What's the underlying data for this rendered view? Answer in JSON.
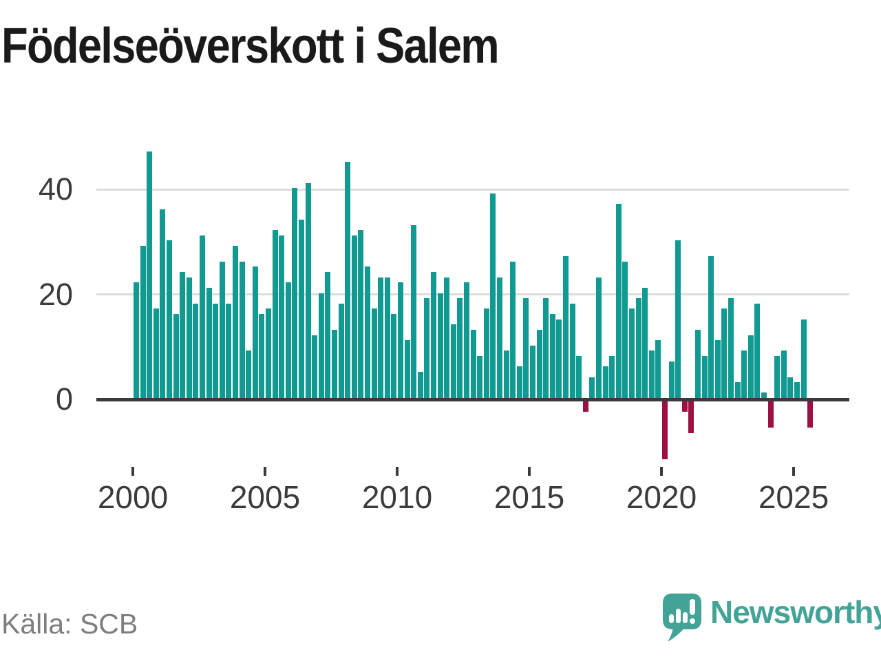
{
  "title": "Födelseöverskott i Salem",
  "source": "Källa: SCB",
  "brand": {
    "name": "Newsworthy",
    "color": "#43a396",
    "icon": "speech-bubble-bar-chart-icon"
  },
  "chart_data": {
    "type": "bar",
    "title": "Födelseöverskott i Salem",
    "x_period": "quarterly",
    "x_range": "2000 Q1 – 2025 Q3",
    "grid": "horizontal",
    "legend": "none",
    "ylim": [
      -12,
      50
    ],
    "yticks": [
      40,
      20,
      0
    ],
    "xticks": [
      2000,
      2005,
      2010,
      2015,
      2020,
      2025
    ],
    "bar_color": "#109a91",
    "negative_bar_color": "#9e1044",
    "series": [
      {
        "year": 2000,
        "values": [
          22,
          29,
          47,
          17
        ]
      },
      {
        "year": 2001,
        "values": [
          36,
          30,
          16,
          24
        ]
      },
      {
        "year": 2002,
        "values": [
          23,
          18,
          31,
          21
        ]
      },
      {
        "year": 2003,
        "values": [
          18,
          26,
          18,
          29
        ]
      },
      {
        "year": 2004,
        "values": [
          26,
          9,
          25,
          16
        ]
      },
      {
        "year": 2005,
        "values": [
          17,
          32,
          31,
          22
        ]
      },
      {
        "year": 2006,
        "values": [
          40,
          34,
          41,
          12
        ]
      },
      {
        "year": 2007,
        "values": [
          20,
          24,
          13,
          18
        ]
      },
      {
        "year": 2008,
        "values": [
          45,
          31,
          32,
          25
        ]
      },
      {
        "year": 2009,
        "values": [
          17,
          23,
          23,
          16
        ]
      },
      {
        "year": 2010,
        "values": [
          22,
          11,
          33,
          5
        ]
      },
      {
        "year": 2011,
        "values": [
          19,
          24,
          20,
          23
        ]
      },
      {
        "year": 2012,
        "values": [
          14,
          19,
          22,
          13
        ]
      },
      {
        "year": 2013,
        "values": [
          8,
          17,
          39,
          23
        ]
      },
      {
        "year": 2014,
        "values": [
          9,
          26,
          6,
          19
        ]
      },
      {
        "year": 2015,
        "values": [
          10,
          13,
          19,
          16
        ]
      },
      {
        "year": 2016,
        "values": [
          15,
          27,
          18,
          8
        ]
      },
      {
        "year": 2017,
        "values": [
          -2,
          4,
          23,
          6
        ]
      },
      {
        "year": 2018,
        "values": [
          8,
          37,
          26,
          17
        ]
      },
      {
        "year": 2019,
        "values": [
          19,
          21,
          9,
          11
        ]
      },
      {
        "year": 2020,
        "values": [
          -11,
          7,
          30,
          -2
        ]
      },
      {
        "year": 2021,
        "values": [
          -6,
          13,
          8,
          27
        ]
      },
      {
        "year": 2022,
        "values": [
          11,
          17,
          19,
          3
        ]
      },
      {
        "year": 2023,
        "values": [
          9,
          12,
          18,
          1
        ]
      },
      {
        "year": 2024,
        "values": [
          -5,
          8,
          9,
          4
        ]
      },
      {
        "year": 2025,
        "values": [
          3,
          15,
          -5
        ]
      }
    ]
  }
}
